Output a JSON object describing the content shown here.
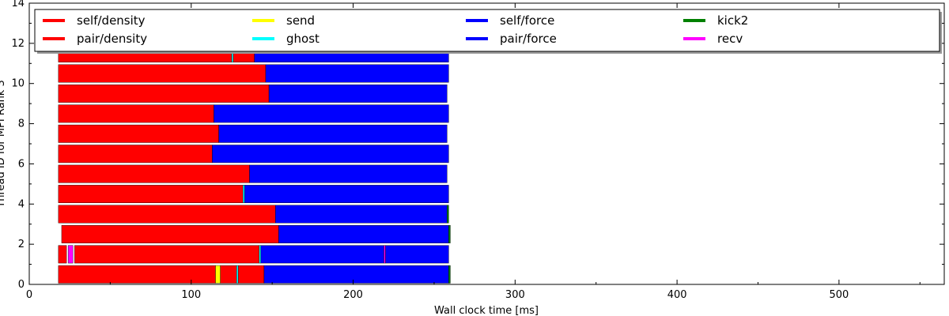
{
  "chart_data": {
    "type": "bar",
    "orientation": "horizontal-timeline",
    "xlabel": "Wall clock time [ms]",
    "ylabel": "Thread ID for MPI Rank 3",
    "xlim": [
      0,
      565
    ],
    "ylim": [
      0,
      14
    ],
    "x_ticks": [
      0,
      100,
      200,
      300,
      400,
      500
    ],
    "y_ticks": [
      0,
      2,
      4,
      6,
      8,
      10,
      12,
      14
    ],
    "grid": false,
    "legend_placement": "top",
    "legend": [
      {
        "label": "self/density",
        "color": "#ff0000"
      },
      {
        "label": "pair/density",
        "color": "#ff0000"
      },
      {
        "label": "send",
        "color": "#ffff00"
      },
      {
        "label": "ghost",
        "color": "#00ffff"
      },
      {
        "label": "self/force",
        "color": "#0000ff"
      },
      {
        "label": "pair/force",
        "color": "#0000ff"
      },
      {
        "label": "kick2",
        "color": "#008000"
      },
      {
        "label": "recv",
        "color": "#ff00ff"
      }
    ],
    "colors": {
      "density": "#ff0000",
      "force": "#0000ff",
      "send": "#ffff00",
      "ghost": "#00ffff",
      "kick2": "#008000",
      "recv": "#ff00ff"
    },
    "threads": [
      {
        "id": 0,
        "tasks": [
          {
            "type": "density",
            "start": 18,
            "end": 115
          },
          {
            "type": "send",
            "start": 115,
            "end": 118
          },
          {
            "type": "density",
            "start": 118,
            "end": 128
          },
          {
            "type": "ghost",
            "start": 128,
            "end": 129
          },
          {
            "type": "density",
            "start": 129,
            "end": 145
          },
          {
            "type": "force",
            "start": 145,
            "end": 259
          },
          {
            "type": "kick2",
            "start": 259,
            "end": 260
          }
        ]
      },
      {
        "id": 1,
        "tasks": [
          {
            "type": "density",
            "start": 18,
            "end": 23
          },
          {
            "type": "recv",
            "start": 24,
            "end": 27
          },
          {
            "type": "density",
            "start": 28,
            "end": 142
          },
          {
            "type": "ghost",
            "start": 142,
            "end": 143
          },
          {
            "type": "force",
            "start": 143,
            "end": 219
          },
          {
            "type": "recv",
            "start": 219,
            "end": 220
          },
          {
            "type": "force",
            "start": 220,
            "end": 259
          }
        ]
      },
      {
        "id": 2,
        "tasks": [
          {
            "type": "density",
            "start": 20,
            "end": 154
          },
          {
            "type": "force",
            "start": 154,
            "end": 259
          },
          {
            "type": "kick2",
            "start": 259,
            "end": 260
          }
        ]
      },
      {
        "id": 3,
        "tasks": [
          {
            "type": "density",
            "start": 18,
            "end": 152
          },
          {
            "type": "force",
            "start": 152,
            "end": 258
          },
          {
            "type": "kick2",
            "start": 258,
            "end": 259
          }
        ]
      },
      {
        "id": 4,
        "tasks": [
          {
            "type": "density",
            "start": 18,
            "end": 132
          },
          {
            "type": "ghost",
            "start": 132,
            "end": 133
          },
          {
            "type": "force",
            "start": 133,
            "end": 259
          }
        ]
      },
      {
        "id": 5,
        "tasks": [
          {
            "type": "density",
            "start": 18,
            "end": 136
          },
          {
            "type": "force",
            "start": 136,
            "end": 258
          }
        ]
      },
      {
        "id": 6,
        "tasks": [
          {
            "type": "density",
            "start": 18,
            "end": 113
          },
          {
            "type": "force",
            "start": 113,
            "end": 259
          }
        ]
      },
      {
        "id": 7,
        "tasks": [
          {
            "type": "density",
            "start": 18,
            "end": 117
          },
          {
            "type": "force",
            "start": 117,
            "end": 258
          }
        ]
      },
      {
        "id": 8,
        "tasks": [
          {
            "type": "density",
            "start": 18,
            "end": 114
          },
          {
            "type": "force",
            "start": 114,
            "end": 259
          }
        ]
      },
      {
        "id": 9,
        "tasks": [
          {
            "type": "density",
            "start": 18,
            "end": 148
          },
          {
            "type": "force",
            "start": 148,
            "end": 258
          }
        ]
      },
      {
        "id": 10,
        "tasks": [
          {
            "type": "density",
            "start": 18,
            "end": 146
          },
          {
            "type": "force",
            "start": 146,
            "end": 259
          }
        ]
      },
      {
        "id": 11,
        "tasks": [
          {
            "type": "density",
            "start": 18,
            "end": 125
          },
          {
            "type": "ghost",
            "start": 125,
            "end": 126
          },
          {
            "type": "density",
            "start": 126,
            "end": 139
          },
          {
            "type": "force",
            "start": 139,
            "end": 259
          }
        ]
      }
    ]
  }
}
